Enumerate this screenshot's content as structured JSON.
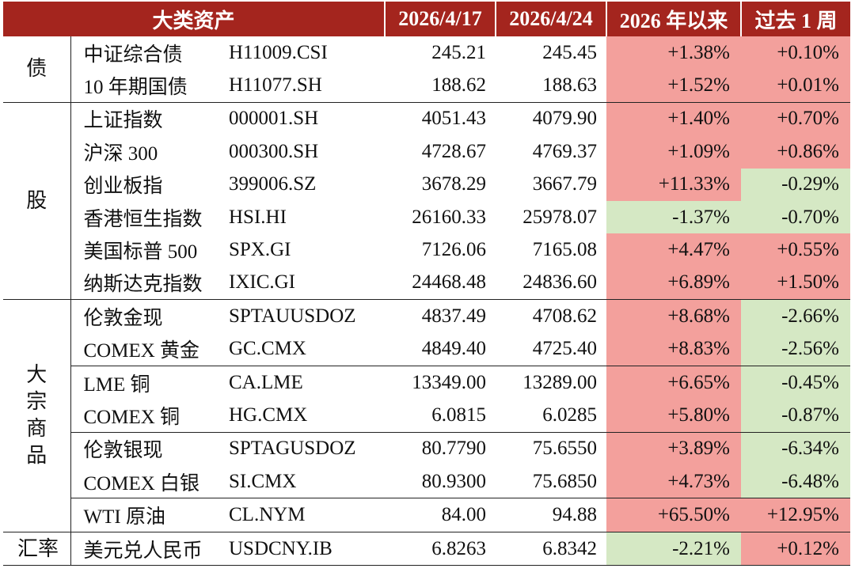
{
  "header": {
    "asset_class": "大类资产",
    "date1": "2026/4/17",
    "date2": "2026/4/24",
    "ytd": "2026 年以来",
    "week": "过去 1 周"
  },
  "groups": [
    {
      "label": "债",
      "rows": [
        {
          "name": "中证综合债",
          "code": "H11009.CSI",
          "v1": "245.21",
          "v2": "245.45",
          "ytd": "+1.38%",
          "wk": "+0.10%"
        },
        {
          "name": "10 年期国债",
          "code": "H11077.SH",
          "v1": "188.62",
          "v2": "188.63",
          "ytd": "+1.52%",
          "wk": "+0.01%"
        }
      ]
    },
    {
      "label": "股",
      "rows": [
        {
          "name": "上证指数",
          "code": "000001.SH",
          "v1": "4051.43",
          "v2": "4079.90",
          "ytd": "+1.40%",
          "wk": "+0.70%"
        },
        {
          "name": "沪深 300",
          "code": "000300.SH",
          "v1": "4728.67",
          "v2": "4769.37",
          "ytd": "+1.09%",
          "wk": "+0.86%"
        },
        {
          "name": "创业板指",
          "code": "399006.SZ",
          "v1": "3678.29",
          "v2": "3667.79",
          "ytd": "+11.33%",
          "wk": "-0.29%"
        },
        {
          "name": "香港恒生指数",
          "code": "HSI.HI",
          "v1": "26160.33",
          "v2": "25978.07",
          "ytd": "-1.37%",
          "wk": "-0.70%"
        },
        {
          "name": "美国标普 500",
          "code": "SPX.GI",
          "v1": "7126.06",
          "v2": "7165.08",
          "ytd": "+4.47%",
          "wk": "+0.55%"
        },
        {
          "name": "纳斯达克指数",
          "code": "IXIC.GI",
          "v1": "24468.48",
          "v2": "24836.60",
          "ytd": "+6.89%",
          "wk": "+1.50%"
        }
      ]
    },
    {
      "label": "大宗商品",
      "rows": [
        {
          "name": "伦敦金现",
          "code": "SPTAUUSDOZ",
          "v1": "4837.49",
          "v2": "4708.62",
          "ytd": "+8.68%",
          "wk": "-2.66%"
        },
        {
          "name": "COMEX 黄金",
          "code": "GC.CMX",
          "v1": "4849.40",
          "v2": "4725.40",
          "ytd": "+8.83%",
          "wk": "-2.56%"
        },
        {
          "name": "LME 铜",
          "code": "CA.LME",
          "v1": "13349.00",
          "v2": "13289.00",
          "ytd": "+6.65%",
          "wk": "-0.45%"
        },
        {
          "name": "COMEX 铜",
          "code": "HG.CMX",
          "v1": "6.0815",
          "v2": "6.0285",
          "ytd": "+5.80%",
          "wk": "-0.87%"
        },
        {
          "name": "伦敦银现",
          "code": "SPTAGUSDOZ",
          "v1": "80.7790",
          "v2": "75.6550",
          "ytd": "+3.89%",
          "wk": "-6.34%"
        },
        {
          "name": "COMEX 白银",
          "code": "SI.CMX",
          "v1": "80.9300",
          "v2": "75.6850",
          "ytd": "+4.73%",
          "wk": "-6.48%"
        },
        {
          "name": "WTI 原油",
          "code": "CL.NYM",
          "v1": "84.00",
          "v2": "94.88",
          "ytd": "+65.50%",
          "wk": "+12.95%"
        }
      ]
    },
    {
      "label": "汇率",
      "rows": [
        {
          "name": "美元兑人民币",
          "code": "USDCNY.IB",
          "v1": "6.8263",
          "v2": "6.8342",
          "ytd": "-2.21%",
          "wk": "+0.12%"
        }
      ]
    }
  ],
  "colors": {
    "header_bg": "#a4251e",
    "positive": "#f3a09c",
    "negative": "#d5e8c4"
  }
}
